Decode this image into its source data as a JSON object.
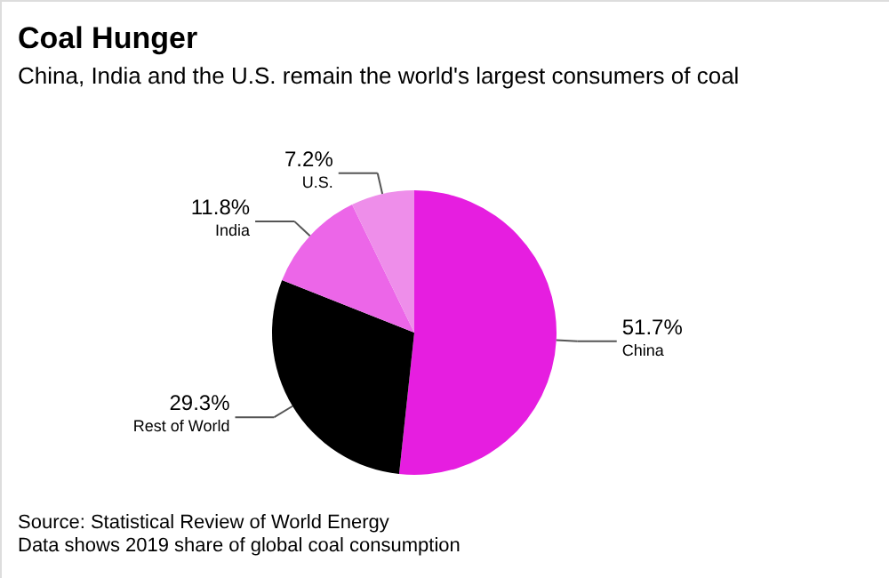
{
  "chart_data": {
    "type": "pie",
    "title": "Coal Hunger",
    "subtitle": "China, India and the U.S. remain the world's largest consumers of coal",
    "categories": [
      "China",
      "Rest of World",
      "India",
      "U.S."
    ],
    "values": [
      51.7,
      29.3,
      11.8,
      7.2
    ],
    "value_labels": [
      "51.7%",
      "29.3%",
      "11.8%",
      "7.2%"
    ],
    "colors": [
      "#e61ee0",
      "#000000",
      "#ec66e8",
      "#ee8eea"
    ],
    "annotations": [
      "Source: Statistical Review of World Energy",
      "Data shows 2019 share of global coal consumption"
    ]
  }
}
